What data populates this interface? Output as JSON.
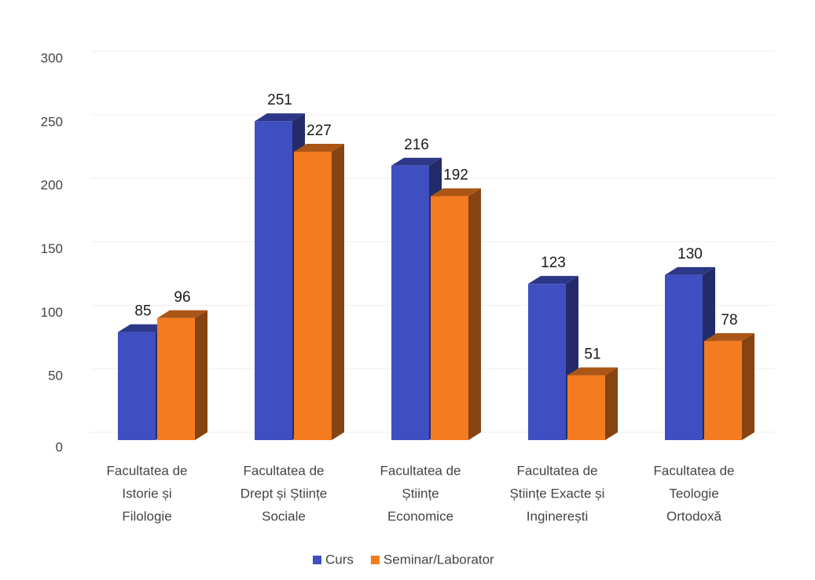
{
  "chart_data": {
    "type": "bar3d",
    "categories": [
      [
        "Facultatea de",
        "Istorie și",
        "Filologie"
      ],
      [
        "Facultatea de",
        "Drept și Științe",
        "Sociale"
      ],
      [
        "Facultatea de",
        "Științe",
        "Economice"
      ],
      [
        "Facultatea de",
        "Științe Exacte și",
        "Inginerești"
      ],
      [
        "Facultatea de",
        "Teologie",
        "Ortodoxă"
      ]
    ],
    "series": [
      {
        "name": "Curs",
        "color": "#3f4fc1",
        "values": [
          85,
          251,
          216,
          123,
          130
        ]
      },
      {
        "name": "Seminar/Laborator",
        "color": "#f47b20",
        "values": [
          96,
          227,
          192,
          51,
          78
        ]
      }
    ],
    "ylim": [
      0,
      300
    ],
    "yticks": [
      0,
      50,
      100,
      150,
      200,
      250,
      300
    ],
    "grid": true,
    "legend": "bottom"
  }
}
